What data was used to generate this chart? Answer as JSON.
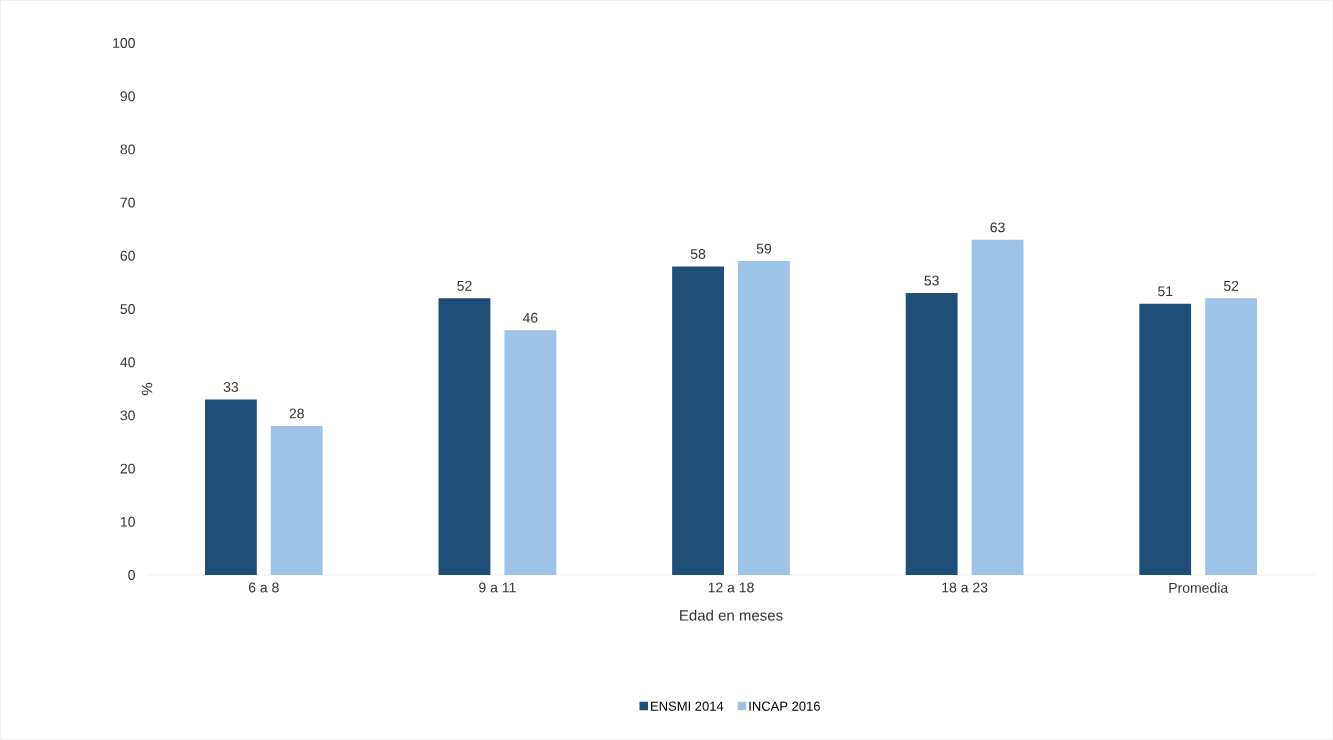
{
  "chart_data": {
    "type": "bar",
    "ylabel": "%",
    "xlabel": "Edad en meses",
    "categories": [
      "6 a 8",
      "9 a 11",
      "12 a 18",
      "18 a 23",
      "Promedia"
    ],
    "series": [
      {
        "name": "ENSMI 2014",
        "color": "#1f4e79",
        "values": [
          33,
          52,
          58,
          53,
          51
        ]
      },
      {
        "name": "INCAP 2016",
        "color": "#9dc3e6",
        "values": [
          28,
          46,
          59,
          63,
          52
        ]
      }
    ],
    "ylim": [
      0,
      100
    ],
    "yticks": [
      0,
      10,
      20,
      30,
      40,
      50,
      60,
      70,
      80,
      90,
      100
    ],
    "data_labels": true,
    "legend": "bottom"
  }
}
